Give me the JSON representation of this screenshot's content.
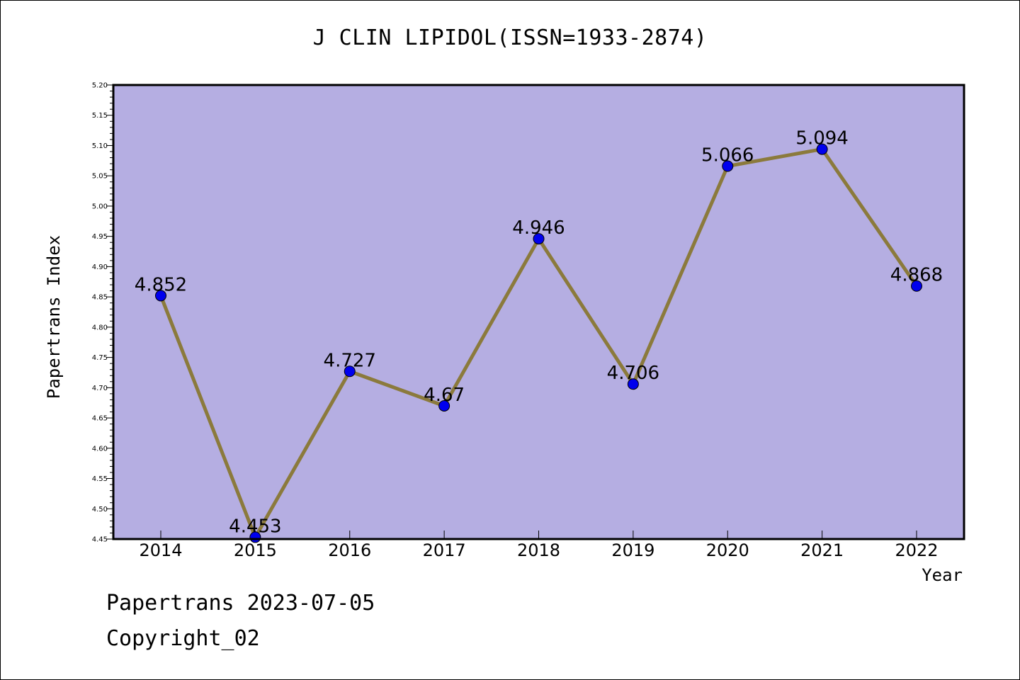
{
  "chart_data": {
    "type": "line",
    "title": "J CLIN LIPIDOL(ISSN=1933-2874)",
    "xlabel": "Year",
    "ylabel": "Papertrans Index",
    "categories": [
      "2014",
      "2015",
      "2016",
      "2017",
      "2018",
      "2019",
      "2020",
      "2021",
      "2022"
    ],
    "series": [
      {
        "values": [
          4.852,
          4.453,
          4.727,
          4.67,
          4.946,
          4.706,
          5.066,
          5.094,
          4.868
        ],
        "value_labels": [
          "4.852",
          "4.453",
          "4.727",
          "4.67",
          "4.946",
          "4.706",
          "5.066",
          "5.094",
          "4.868"
        ]
      }
    ],
    "ylim": [
      4.45,
      5.2
    ],
    "yticks": [
      "4.45",
      "4.50",
      "4.55",
      "4.60",
      "4.65",
      "4.70",
      "4.75",
      "4.80",
      "4.85",
      "4.90",
      "4.95",
      "5.00",
      "5.05",
      "5.10",
      "5.15",
      "5.20"
    ],
    "grid": false,
    "colors": {
      "plot_background": "#b5aee2",
      "line": "#8b7a3c",
      "marker": "#0000ee"
    }
  },
  "footer": {
    "date_text": "Papertrans 2023-07-05",
    "copyright_text": "Copyright_02"
  }
}
